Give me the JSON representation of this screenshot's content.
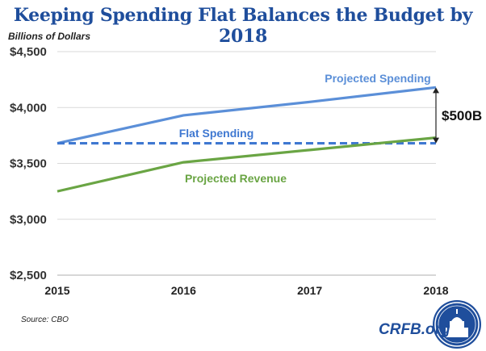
{
  "chart_data": {
    "type": "line",
    "title": "Keeping Spending Flat Balances the Budget by 2018",
    "ylabel": "Billions of Dollars",
    "xlabel": "",
    "x": [
      2015,
      2016,
      2017,
      2018
    ],
    "x_tick_labels": [
      "2015",
      "2016",
      "2017",
      "2018"
    ],
    "ylim": [
      2500,
      4500
    ],
    "y_ticks": [
      2500,
      3000,
      3500,
      4000,
      4500
    ],
    "y_tick_labels": [
      "$2,500",
      "$3,000",
      "$3,500",
      "$4,000",
      "$4,500"
    ],
    "series": [
      {
        "name": "Projected Spending",
        "values": [
          3680,
          3930,
          4050,
          4180
        ],
        "color": "#5b8fd8",
        "style": "solid"
      },
      {
        "name": "Flat Spending",
        "values": [
          3680,
          3680,
          3680,
          3680
        ],
        "color": "#3f78d1",
        "style": "dashed"
      },
      {
        "name": "Projected Revenue",
        "values": [
          3250,
          3510,
          3620,
          3730
        ],
        "color": "#6aa544",
        "style": "solid"
      }
    ],
    "annotation": {
      "text": "$500B",
      "x": 2018,
      "from": 3680,
      "to": 4180
    }
  },
  "source": "Source: CBO",
  "brand": "CRFB.org"
}
